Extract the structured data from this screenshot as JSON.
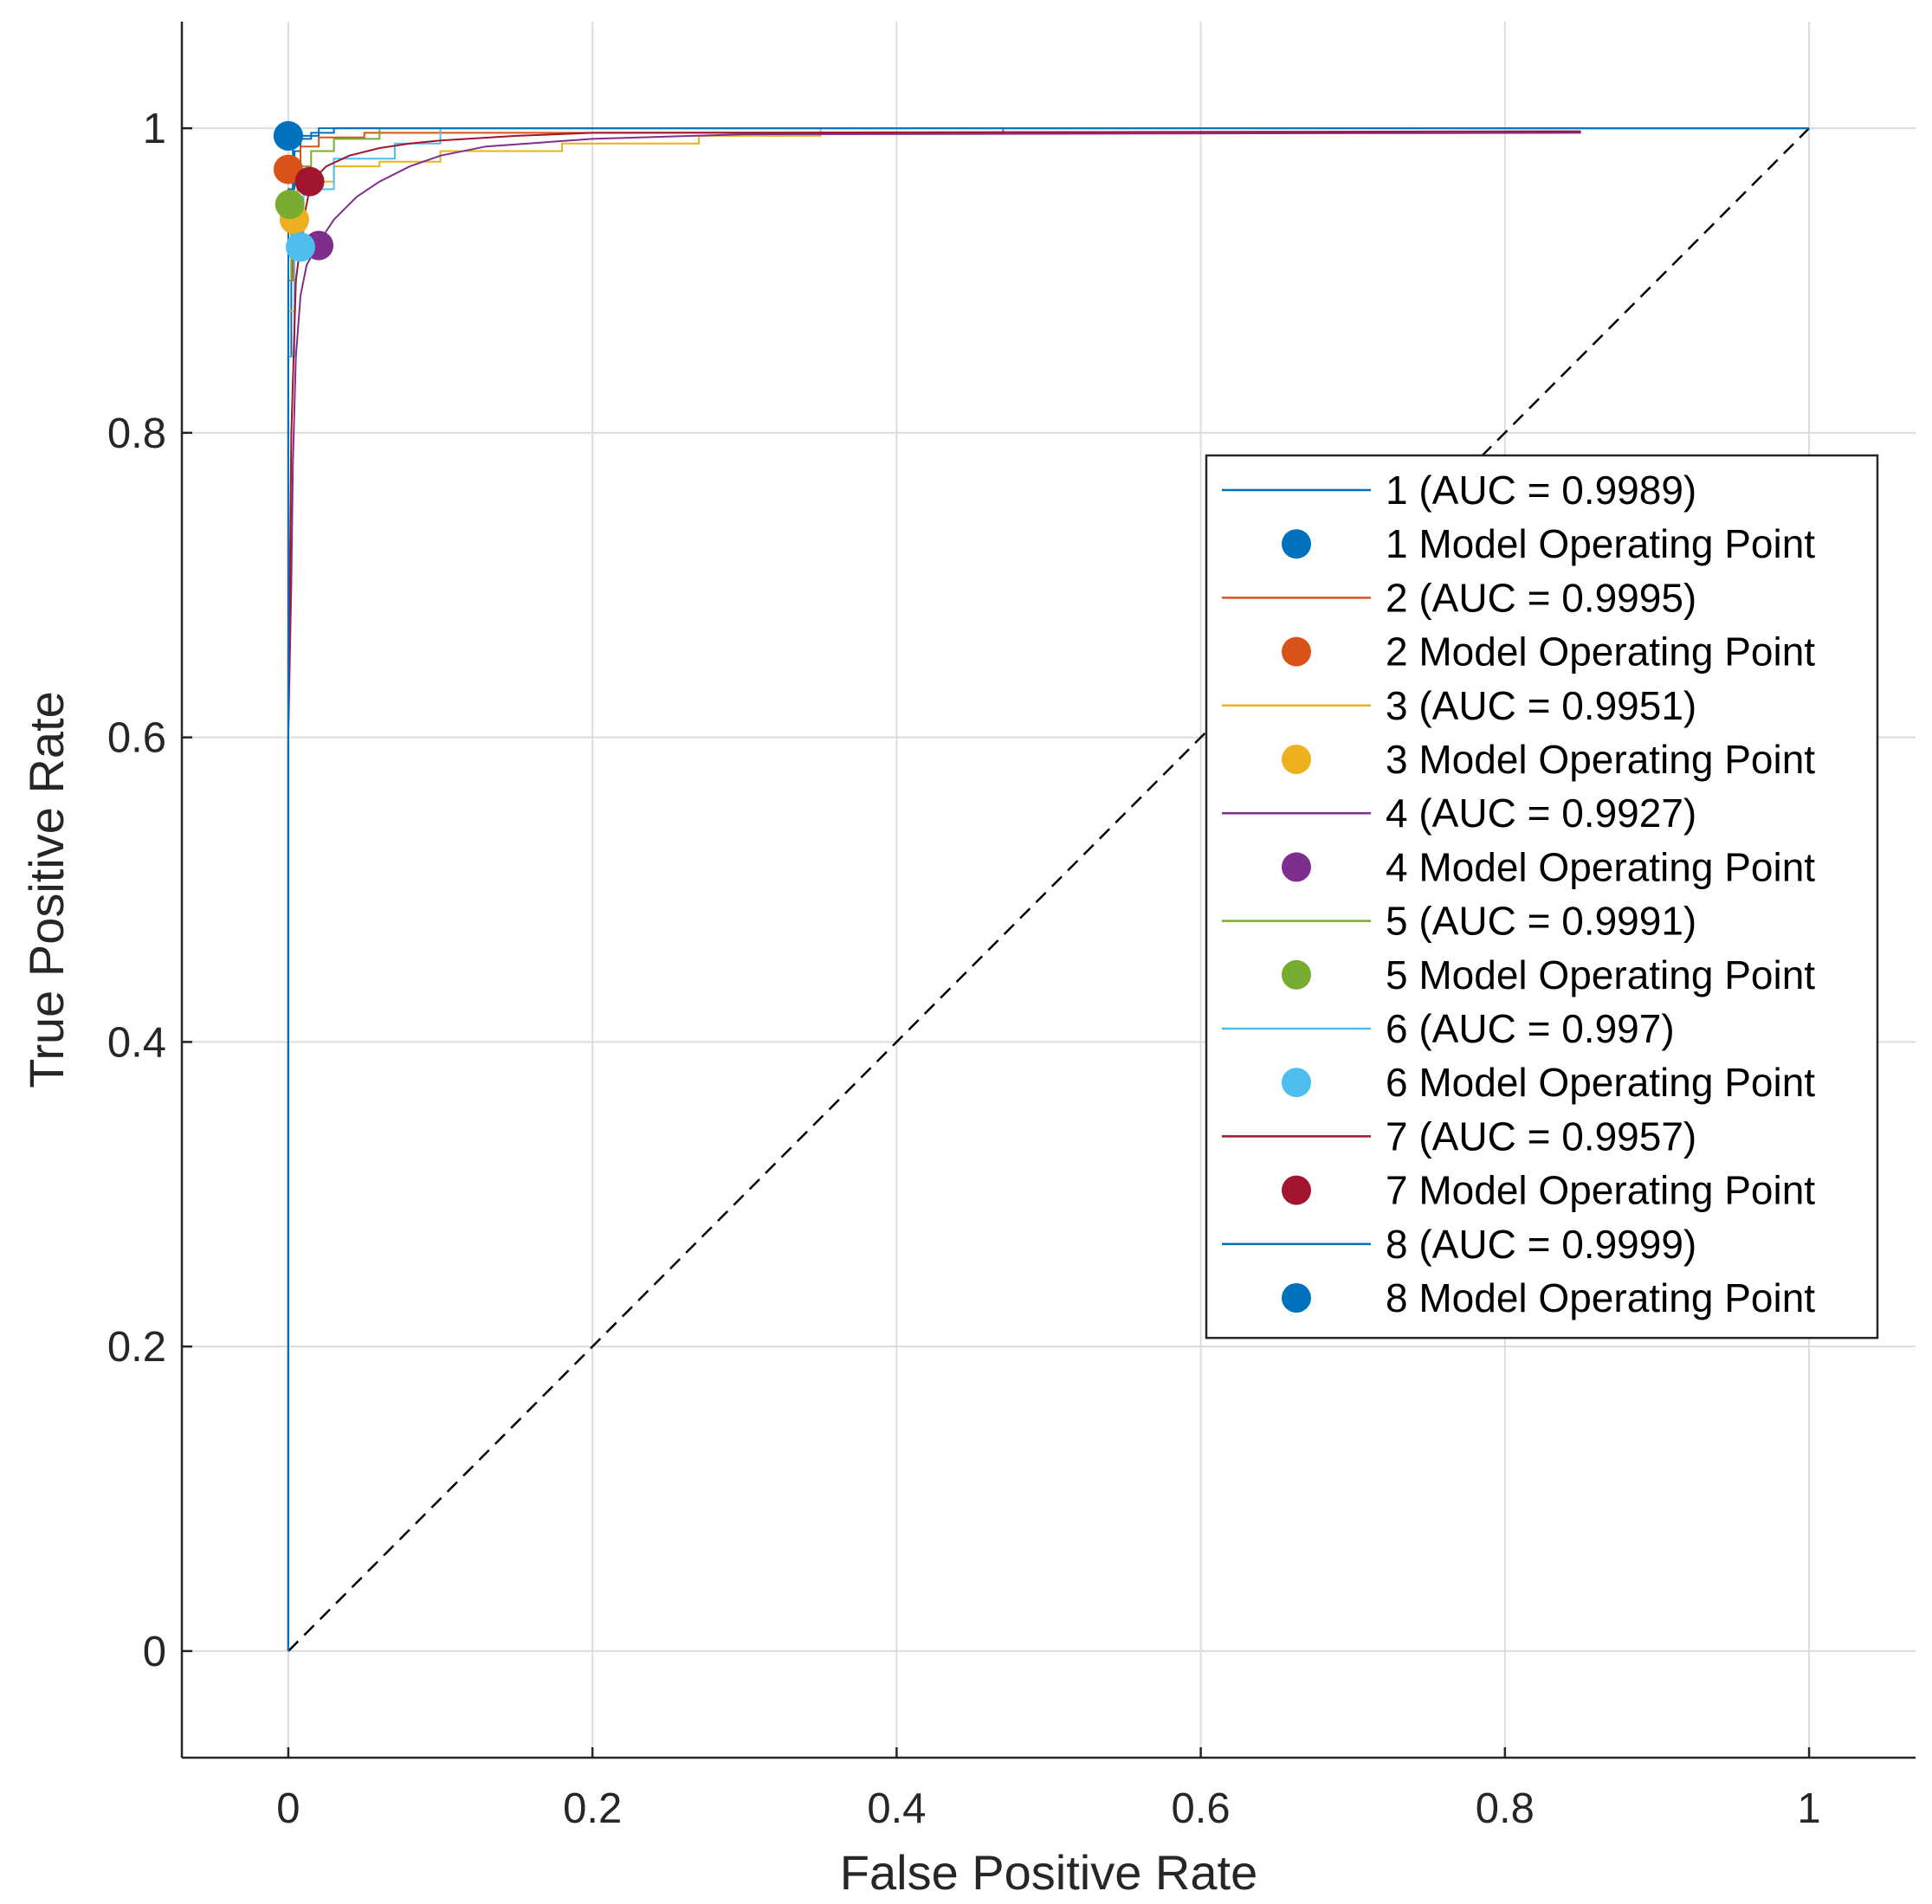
{
  "chart_data": {
    "type": "line",
    "title": "",
    "xlabel": "False Positive Rate",
    "ylabel": "True Positive Rate",
    "xlim": [
      -0.07,
      1.07
    ],
    "ylim": [
      -0.07,
      1.07
    ],
    "xticks": [
      0,
      0.2,
      0.4,
      0.6,
      0.8,
      1
    ],
    "yticks": [
      0,
      0.2,
      0.4,
      0.6,
      0.8,
      1
    ],
    "xtick_labels": [
      "0",
      "0.2",
      "0.4",
      "0.6",
      "0.8",
      "1"
    ],
    "ytick_labels": [
      "0",
      "0.2",
      "0.4",
      "0.6",
      "0.8",
      "1"
    ],
    "grid": true,
    "legend_position": "center-right",
    "reference_line": {
      "name": "chance",
      "x": [
        0,
        1
      ],
      "y": [
        0,
        1
      ],
      "style": "dashed",
      "color": "#000000"
    },
    "series": [
      {
        "name": "1 (AUC = 0.9989)",
        "marker_label": "1 Model Operating Point",
        "color": "#0072BD",
        "x": [
          0,
          0,
          0.002,
          0.002,
          0.004,
          0.004,
          0.008,
          0.008,
          0.015,
          0.015,
          0.03,
          0.03,
          1
        ],
        "y": [
          0,
          0.85,
          0.85,
          0.96,
          0.96,
          0.985,
          0.985,
          0.993,
          0.993,
          0.997,
          0.997,
          1,
          1
        ],
        "operating_point": [
          0.0,
          0.995
        ]
      },
      {
        "name": "2 (AUC = 0.9995)",
        "marker_label": "2 Model Operating Point",
        "color": "#D95319",
        "x": [
          0,
          0,
          0.003,
          0.003,
          0.008,
          0.008,
          0.02,
          0.02,
          0.05,
          0.05,
          0.47,
          0.47,
          1
        ],
        "y": [
          0,
          0.9,
          0.9,
          0.975,
          0.975,
          0.988,
          0.988,
          0.994,
          0.994,
          0.997,
          0.997,
          1,
          1
        ],
        "operating_point": [
          0.0,
          0.973
        ]
      },
      {
        "name": "3 (AUC = 0.9951)",
        "marker_label": "3 Model Operating Point",
        "color": "#EDB120",
        "x": [
          0,
          0,
          0.004,
          0.004,
          0.01,
          0.01,
          0.03,
          0.03,
          0.06,
          0.06,
          0.1,
          0.1,
          0.18,
          0.18,
          0.27,
          0.27,
          0.35,
          0.35,
          1
        ],
        "y": [
          0,
          0.88,
          0.88,
          0.94,
          0.94,
          0.965,
          0.965,
          0.975,
          0.975,
          0.978,
          0.978,
          0.985,
          0.985,
          0.99,
          0.99,
          0.995,
          0.995,
          1,
          1
        ],
        "operating_point": [
          0.004,
          0.94
        ]
      },
      {
        "name": "4 (AUC = 0.9927)",
        "marker_label": "4 Model Operating Point",
        "color": "#7E2F8E",
        "x": [
          0,
          0,
          0.002,
          0.003,
          0.005,
          0.008,
          0.012,
          0.02,
          0.03,
          0.045,
          0.06,
          0.08,
          0.1,
          0.13,
          0.2,
          0.3,
          0.85
        ],
        "y": [
          0,
          0.6,
          0.7,
          0.78,
          0.85,
          0.89,
          0.91,
          0.925,
          0.94,
          0.955,
          0.965,
          0.975,
          0.982,
          0.988,
          0.993,
          0.996,
          0.997
        ],
        "operating_point": [
          0.02,
          0.923
        ]
      },
      {
        "name": "5 (AUC = 0.9991)",
        "marker_label": "5 Model Operating Point",
        "color": "#77AC30",
        "x": [
          0,
          0,
          0.002,
          0.002,
          0.006,
          0.006,
          0.015,
          0.015,
          0.03,
          0.03,
          0.06,
          0.06,
          1
        ],
        "y": [
          0,
          0.9,
          0.9,
          0.95,
          0.95,
          0.975,
          0.975,
          0.985,
          0.985,
          0.993,
          0.993,
          1,
          1
        ],
        "operating_point": [
          0.001,
          0.95
        ]
      },
      {
        "name": "6 (AUC = 0.997)",
        "marker_label": "6 Model Operating Point",
        "color": "#4DBEEE",
        "x": [
          0,
          0,
          0.004,
          0.004,
          0.01,
          0.01,
          0.03,
          0.03,
          0.07,
          0.07,
          0.1,
          0.1,
          1
        ],
        "y": [
          0,
          0.85,
          0.85,
          0.92,
          0.92,
          0.96,
          0.96,
          0.98,
          0.98,
          0.99,
          0.99,
          1,
          1
        ],
        "operating_point": [
          0.008,
          0.922
        ]
      },
      {
        "name": "7 (AUC = 0.9957)",
        "marker_label": "7 Model Operating Point",
        "color": "#A2142F",
        "x": [
          0,
          0,
          0.002,
          0.005,
          0.01,
          0.015,
          0.025,
          0.04,
          0.06,
          0.08,
          0.1,
          0.15,
          0.2,
          0.85
        ],
        "y": [
          0,
          0.6,
          0.8,
          0.9,
          0.94,
          0.965,
          0.975,
          0.982,
          0.987,
          0.99,
          0.992,
          0.995,
          0.997,
          0.998
        ],
        "operating_point": [
          0.014,
          0.965
        ]
      },
      {
        "name": "8 (AUC = 0.9999)",
        "marker_label": "8 Model Operating Point",
        "color": "#0072BD",
        "x": [
          0,
          0,
          0.003,
          0.003,
          0.02,
          0.02,
          1
        ],
        "y": [
          0,
          0.96,
          0.96,
          0.995,
          0.995,
          1,
          1
        ],
        "operating_point": [
          0.0,
          0.995
        ]
      }
    ]
  }
}
